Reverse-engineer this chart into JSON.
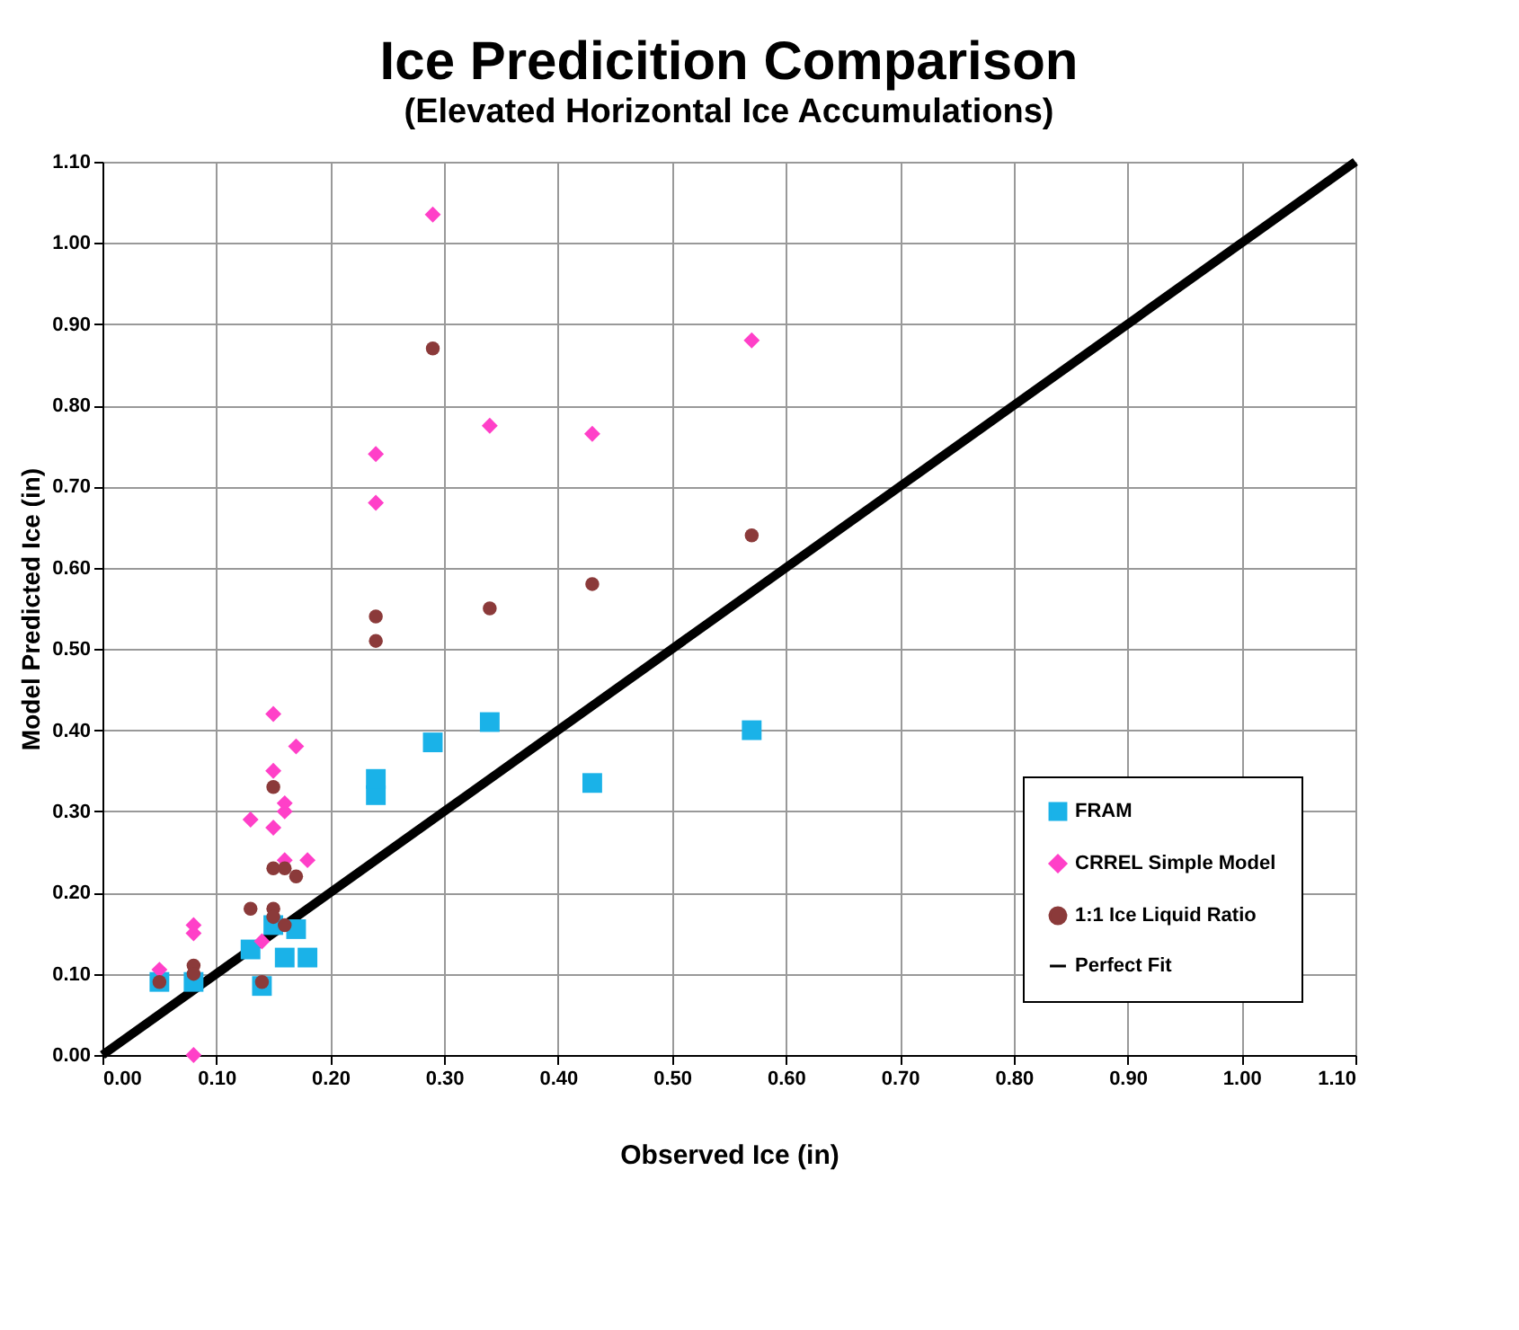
{
  "chart_data": {
    "type": "scatter",
    "title": "Ice Predicition Comparison",
    "subtitle": "(Elevated Horizontal Ice Accumulations)",
    "xlabel": "Observed Ice (in)",
    "ylabel": "Model Predicted Ice (in)",
    "xlim": [
      0,
      1.1
    ],
    "ylim": [
      0,
      1.1
    ],
    "xticks": [
      {
        "value": 0,
        "label": "0.00"
      },
      {
        "value": 0.1,
        "label": "0.10"
      },
      {
        "value": 0.2,
        "label": "0.20"
      },
      {
        "value": 0.3,
        "label": "0.30"
      },
      {
        "value": 0.4,
        "label": "0.40"
      },
      {
        "value": 0.5,
        "label": "0.50"
      },
      {
        "value": 0.6,
        "label": "0.60"
      },
      {
        "value": 0.7,
        "label": "0.70"
      },
      {
        "value": 0.8,
        "label": "0.80"
      },
      {
        "value": 0.9,
        "label": "0.90"
      },
      {
        "value": 1.0,
        "label": "1.00"
      },
      {
        "value": 1.1,
        "label": "1.10"
      }
    ],
    "yticks": [
      {
        "value": 0,
        "label": "0.00"
      },
      {
        "value": 0.1,
        "label": "0.10"
      },
      {
        "value": 0.2,
        "label": "0.20"
      },
      {
        "value": 0.3,
        "label": "0.30"
      },
      {
        "value": 0.4,
        "label": "0.40"
      },
      {
        "value": 0.5,
        "label": "0.50"
      },
      {
        "value": 0.6,
        "label": "0.60"
      },
      {
        "value": 0.7,
        "label": "0.70"
      },
      {
        "value": 0.8,
        "label": "0.80"
      },
      {
        "value": 0.9,
        "label": "0.90"
      },
      {
        "value": 1.0,
        "label": "1.00"
      },
      {
        "value": 1.1,
        "label": "1.10"
      }
    ],
    "grid": true,
    "legend": "bottom right",
    "series": [
      {
        "name": "FRAM",
        "color": "#1ab2e8",
        "marker": "square",
        "x": [
          0.05,
          0.08,
          0.13,
          0.14,
          0.15,
          0.16,
          0.17,
          0.18,
          0.24,
          0.24,
          0.29,
          0.34,
          0.43,
          0.57
        ],
        "values": [
          0.09,
          0.09,
          0.13,
          0.085,
          0.16,
          0.12,
          0.155,
          0.12,
          0.32,
          0.34,
          0.385,
          0.41,
          0.335,
          0.4
        ]
      },
      {
        "name": "CRREL Simple Model",
        "color": "#ff40c8",
        "marker": "diamond",
        "x": [
          0.05,
          0.08,
          0.08,
          0.08,
          0.13,
          0.14,
          0.15,
          0.15,
          0.15,
          0.16,
          0.16,
          0.17,
          0.18,
          0.16,
          0.24,
          0.24,
          0.29,
          0.34,
          0.43,
          0.57
        ],
        "values": [
          0.105,
          0.15,
          0.16,
          0.0,
          0.29,
          0.14,
          0.42,
          0.35,
          0.28,
          0.31,
          0.3,
          0.38,
          0.24,
          0.24,
          0.74,
          0.68,
          1.035,
          0.775,
          0.765,
          0.88
        ]
      },
      {
        "name": "1:1 Ice Liquid Ratio",
        "color": "#8b3a3a",
        "marker": "circle",
        "x": [
          0.05,
          0.08,
          0.08,
          0.13,
          0.14,
          0.15,
          0.15,
          0.15,
          0.16,
          0.17,
          0.16,
          0.15,
          0.24,
          0.24,
          0.29,
          0.34,
          0.43,
          0.57
        ],
        "values": [
          0.09,
          0.11,
          0.1,
          0.18,
          0.09,
          0.33,
          0.23,
          0.18,
          0.23,
          0.22,
          0.16,
          0.17,
          0.54,
          0.51,
          0.87,
          0.55,
          0.58,
          0.64
        ]
      },
      {
        "name": "Perfect Fit",
        "type": "line",
        "color": "#000000",
        "marker": "none",
        "line_style": "solid",
        "x": [
          0,
          1.1
        ],
        "values": [
          0,
          1.1
        ]
      }
    ]
  }
}
